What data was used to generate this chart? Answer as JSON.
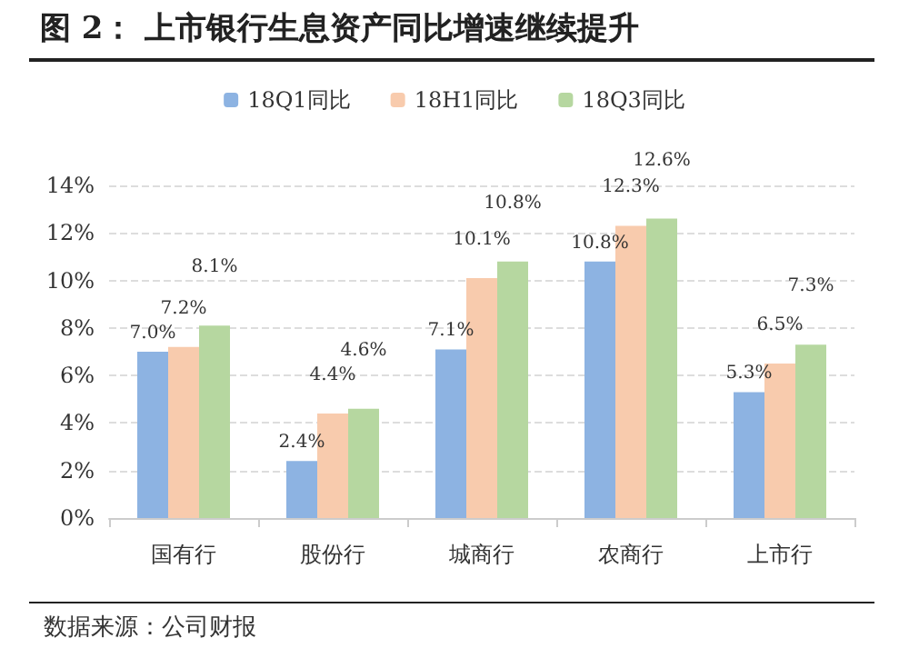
{
  "chart_data": {
    "type": "bar",
    "title": "图 2：  上市银行生息资产同比增速继续提升",
    "categories": [
      "国有行",
      "股份行",
      "城商行",
      "农商行",
      "上市行"
    ],
    "series": [
      {
        "name": "18Q1同比",
        "color": "#8db3e2",
        "values": [
          7.0,
          2.4,
          7.1,
          10.8,
          5.3
        ],
        "value_labels": [
          "7.0%",
          "2.4%",
          "7.1%",
          "10.8%",
          "5.3%"
        ]
      },
      {
        "name": "18H1同比",
        "color": "#f8cbad",
        "values": [
          7.2,
          4.4,
          10.1,
          12.3,
          6.5
        ],
        "value_labels": [
          "7.2%",
          "4.4%",
          "10.1%",
          "12.3%",
          "6.5%"
        ]
      },
      {
        "name": "18Q3同比",
        "color": "#b6d7a0",
        "values": [
          8.1,
          4.6,
          10.8,
          12.6,
          7.3
        ],
        "value_labels": [
          "8.1%",
          "4.6%",
          "10.8%",
          "12.6%",
          "7.3%"
        ]
      }
    ],
    "ylim": [
      0,
      14
    ],
    "yticks": [
      {
        "value": 0,
        "label": "0%"
      },
      {
        "value": 2,
        "label": "2%"
      },
      {
        "value": 4,
        "label": "4%"
      },
      {
        "value": 6,
        "label": "6%"
      },
      {
        "value": 8,
        "label": "8%"
      },
      {
        "value": 10,
        "label": "10%"
      },
      {
        "value": 12,
        "label": "12%"
      },
      {
        "value": 14,
        "label": "14%"
      }
    ],
    "grid": "y",
    "legend": "top",
    "annotations": [
      "数据来源：公司财报"
    ]
  }
}
